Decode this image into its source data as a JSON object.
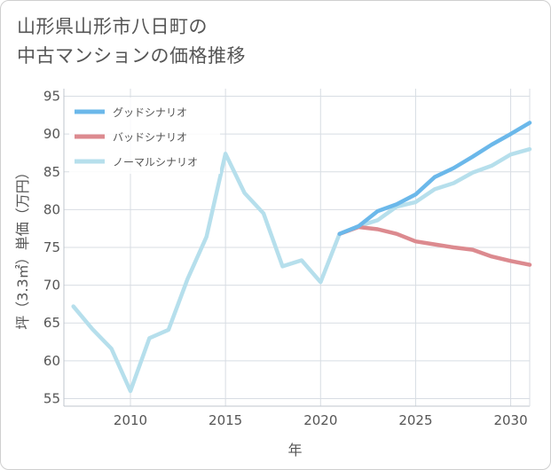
{
  "title_lines": [
    "山形県山形市八日町の",
    "中古マンションの価格推移"
  ],
  "chart_data": {
    "type": "line",
    "xlabel": "年",
    "ylabel": "坪（3.3㎡）単価（万円）",
    "xlim": [
      2006.5,
      2031
    ],
    "ylim": [
      54,
      96
    ],
    "xticks": [
      2010,
      2015,
      2020,
      2025,
      2030
    ],
    "yticks": [
      55,
      60,
      65,
      70,
      75,
      80,
      85,
      90,
      95
    ],
    "grid": true,
    "legend_position": "top-left",
    "series": [
      {
        "name": "グッドシナリオ",
        "color": "#6bb8ea",
        "x": [
          2021,
          2022,
          2023,
          2024,
          2025,
          2026,
          2027,
          2028,
          2029,
          2030,
          2031
        ],
        "values": [
          76.8,
          77.8,
          79.8,
          80.7,
          82.0,
          84.3,
          85.5,
          87.0,
          88.6,
          90.0,
          91.5
        ]
      },
      {
        "name": "バッドシナリオ",
        "color": "#dc8a8f",
        "x": [
          2021,
          2022,
          2023,
          2024,
          2025,
          2026,
          2027,
          2028,
          2029,
          2030,
          2031
        ],
        "values": [
          76.8,
          77.7,
          77.4,
          76.8,
          75.8,
          75.4,
          75.0,
          74.7,
          73.8,
          73.2,
          72.7
        ]
      },
      {
        "name": "ノーマルシナリオ",
        "color": "#b6dfec",
        "x": [
          2007,
          2008,
          2009,
          2010,
          2011,
          2012,
          2013,
          2014,
          2015,
          2016,
          2017,
          2018,
          2019,
          2020,
          2021,
          2022,
          2023,
          2024,
          2025,
          2026,
          2027,
          2028,
          2029,
          2030,
          2031
        ],
        "values": [
          67.2,
          64.2,
          61.6,
          56.0,
          63.0,
          64.1,
          70.8,
          76.4,
          87.4,
          82.2,
          79.5,
          72.5,
          73.3,
          70.4,
          76.8,
          77.8,
          78.6,
          80.4,
          81.0,
          82.7,
          83.5,
          84.9,
          85.8,
          87.3,
          88.0
        ]
      }
    ]
  }
}
